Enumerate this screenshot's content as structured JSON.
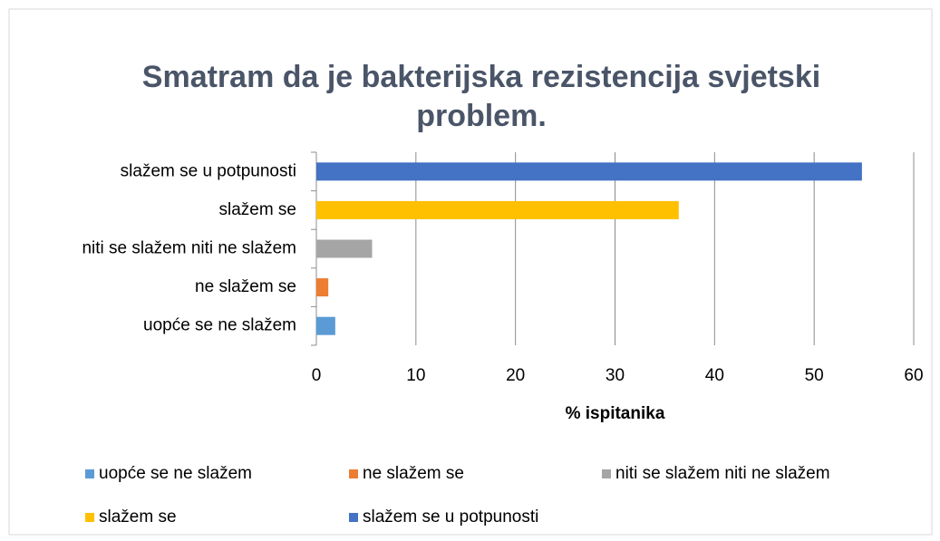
{
  "chart_data": {
    "type": "bar",
    "orientation": "horizontal",
    "title": "Smatram da je bakterijska rezistencija svjetski problem.",
    "x_label": "% ispitanika",
    "categories": [
      "uopće se ne slažem",
      "ne slažem se",
      "niti se slažem niti ne slažem",
      "slažem se",
      "slažem se u potpunosti"
    ],
    "values": [
      1.9,
      1.2,
      5.6,
      36.4,
      54.8
    ],
    "colors": [
      "#5b9bd5",
      "#ed7d31",
      "#a5a5a5",
      "#ffc000",
      "#4472c4"
    ],
    "xlim": [
      0,
      60
    ],
    "xticks": [
      0,
      10,
      20,
      30,
      40,
      50,
      60
    ],
    "grid": true,
    "legend": "bottom"
  }
}
